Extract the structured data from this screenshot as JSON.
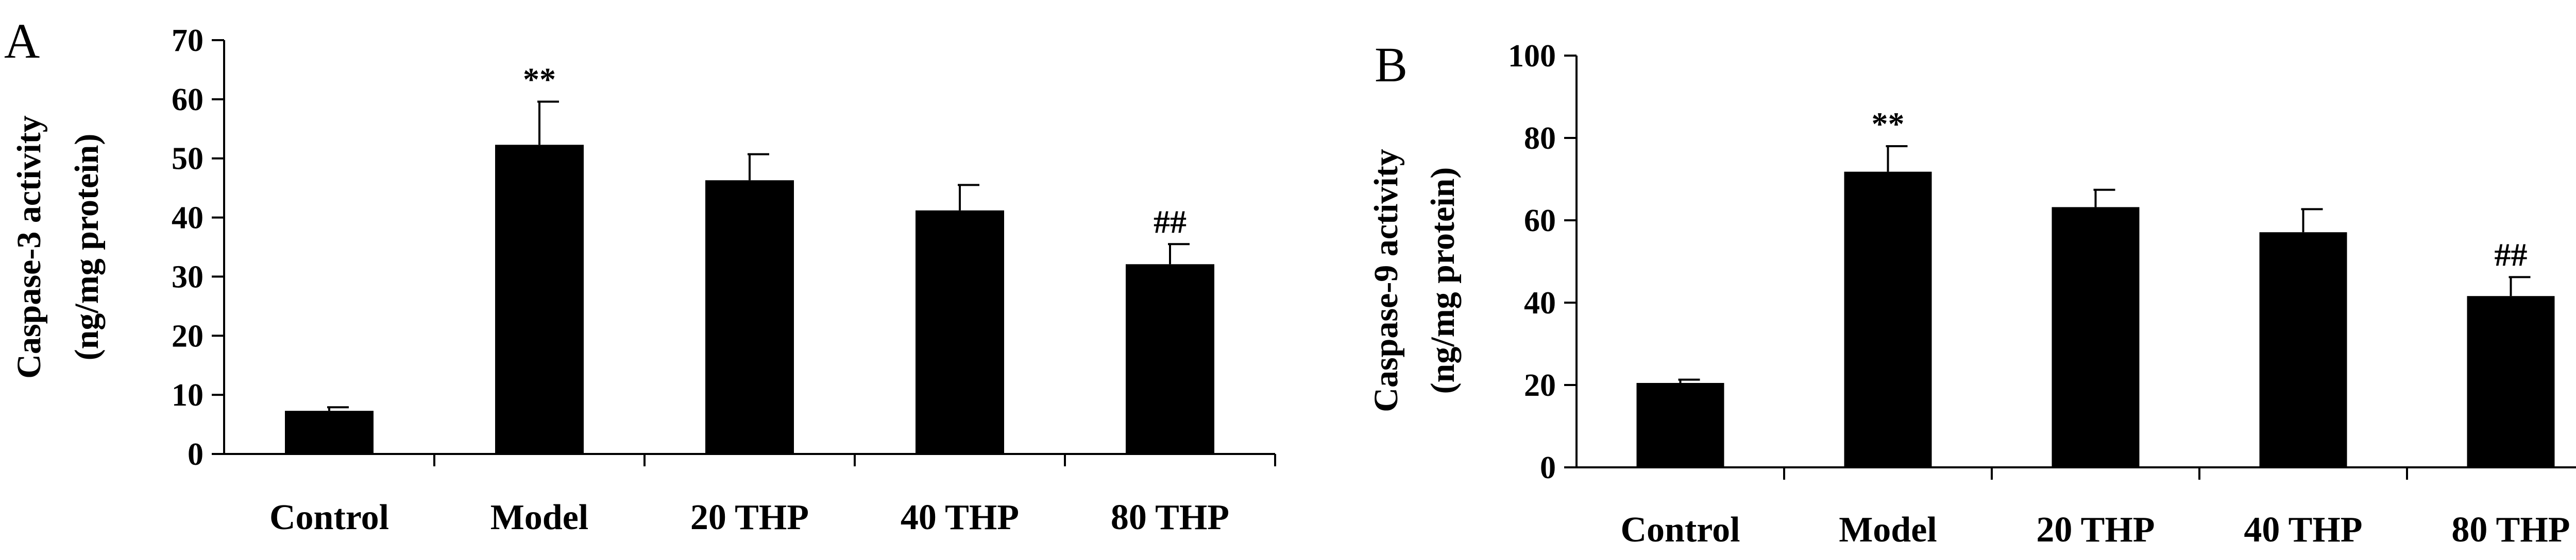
{
  "chart_data": [
    {
      "type": "bar",
      "panel_label": "A",
      "categories": [
        "Control",
        "Model",
        "20 THP",
        "40 THP",
        "80 THP"
      ],
      "values": [
        7.3,
        52.3,
        46.3,
        41.2,
        32.1
      ],
      "errors": [
        0.6,
        7.3,
        4.4,
        4.3,
        3.4
      ],
      "annotations": [
        "",
        "**",
        "",
        "",
        "##"
      ],
      "ylabel_line1": "Caspase-3 activity",
      "ylabel_line2": "(ng/mg protein)",
      "yticks": [
        "0",
        "10",
        "20",
        "30",
        "40",
        "50",
        "60",
        "70"
      ],
      "ylim": [
        0,
        70
      ],
      "ystep": 10,
      "grid": false,
      "bar_color": "#000000"
    },
    {
      "type": "bar",
      "panel_label": "B",
      "categories": [
        "Control",
        "Model",
        "20 THP",
        "40 THP",
        "80 THP"
      ],
      "values": [
        20.5,
        71.8,
        63.2,
        57.1,
        41.6
      ],
      "errors": [
        0.8,
        6.2,
        4.2,
        5.6,
        4.6
      ],
      "annotations": [
        "",
        "**",
        "",
        "",
        "##"
      ],
      "ylabel_line1": "Caspase-9 activity",
      "ylabel_line2": "(ng/mg protein)",
      "yticks": [
        "0",
        "20",
        "40",
        "60",
        "80",
        "100"
      ],
      "ylim": [
        0,
        100
      ],
      "ystep": 20,
      "grid": false,
      "bar_color": "#000000"
    }
  ]
}
